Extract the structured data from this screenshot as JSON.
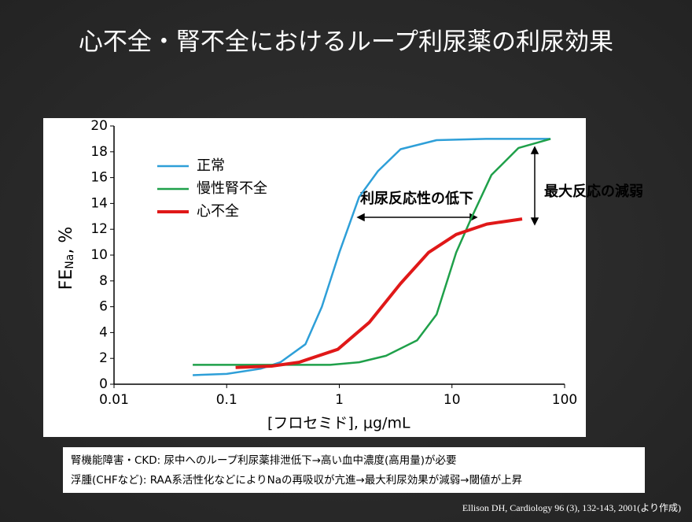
{
  "chart_data": {
    "type": "line",
    "title": "心不全・腎不全におけるループ利尿薬の利尿効果",
    "x_label": "[フロセミド], μg/mL",
    "y_label": {
      "main": "FE",
      "sub": "Na",
      "tail": ", %"
    },
    "log_x": true,
    "xlim": [
      0.01,
      100
    ],
    "xticks": [
      0.01,
      0.1,
      1,
      10,
      100
    ],
    "ylim": [
      0,
      20
    ],
    "yticks": [
      0,
      2,
      4,
      6,
      8,
      10,
      12,
      14,
      16,
      18,
      20
    ],
    "legend": "upper left",
    "series": [
      {
        "name": "正常",
        "color": "#2e9fd8",
        "x": [
          0.05,
          0.1,
          0.2,
          0.3,
          0.5,
          0.7,
          1.0,
          1.5,
          2.2,
          3.5,
          7.3,
          20,
          75
        ],
        "values": [
          0.7,
          0.8,
          1.2,
          1.7,
          3.1,
          6,
          10.2,
          14.5,
          16.5,
          18.2,
          18.9,
          19,
          19
        ]
      },
      {
        "name": "慢性腎不全",
        "color": "#1fa04a",
        "x": [
          0.05,
          0.2,
          0.83,
          1.5,
          2.6,
          4.9,
          7.3,
          10.9,
          15.1,
          22.4,
          39,
          75
        ],
        "values": [
          1.5,
          1.5,
          1.5,
          1.7,
          2.2,
          3.4,
          5.4,
          10.2,
          13,
          16.2,
          18.3,
          19
        ]
      },
      {
        "name": "心不全",
        "color": "#e01818",
        "x": [
          0.12,
          0.25,
          0.44,
          0.97,
          1.85,
          3.5,
          6.2,
          10.9,
          20.4,
          42
        ],
        "values": [
          1.3,
          1.4,
          1.7,
          2.7,
          4.8,
          7.8,
          10.2,
          11.6,
          12.4,
          12.8
        ]
      }
    ],
    "annotations": [
      "利尿反応性の低下",
      "最大反応の減弱"
    ],
    "notes": [
      "腎機能障害・CKD: 尿中へのループ利尿薬排泄低下→高い血中濃度(高用量)が必要",
      "浮腫(CHFなど): RAA系活性化などによりNaの再吸収が亢進→最大利尿効果が減弱→閾値が上昇"
    ],
    "citation": "Ellison DH, Cardiology  96 (3), 132-143, 2001(より作成)"
  }
}
